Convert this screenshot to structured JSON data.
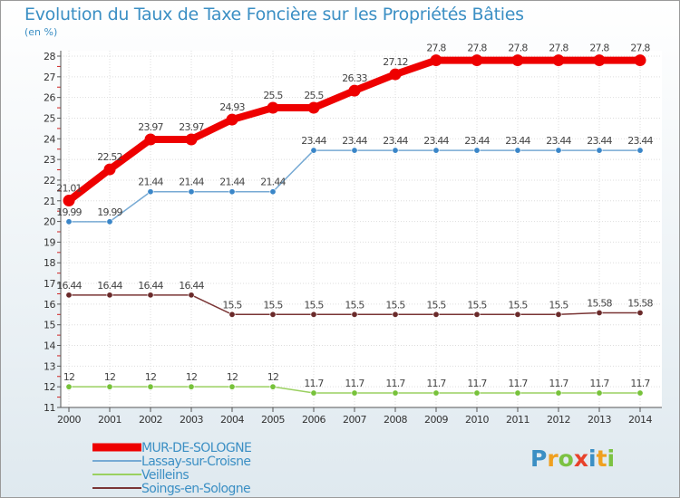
{
  "header": {
    "title": "Evolution du Taux de Taxe Foncière sur les Propriétés Bâties",
    "unit": "(en %)"
  },
  "brand": {
    "name": "Proxiti",
    "letters": [
      "P",
      "r",
      "o",
      "x",
      "i",
      "t",
      "i"
    ],
    "letter_colors": [
      "#3b8fc4",
      "#f0a020",
      "#7cc242",
      "#e8422b",
      "#3b8fc4",
      "#f0a020",
      "#7cc242"
    ]
  },
  "chart_data": {
    "type": "line",
    "title": "Evolution du Taux de Taxe Foncière sur les Propriétés Bâties",
    "ylabel": "(en %)",
    "xlabel": "",
    "x": [
      "2000",
      "2001",
      "2002",
      "2003",
      "2004",
      "2005",
      "2006",
      "2007",
      "2008",
      "2009",
      "2010",
      "2011",
      "2012",
      "2013",
      "2014"
    ],
    "ylim": [
      11,
      28
    ],
    "yticks": [
      11,
      12,
      13,
      14,
      15,
      16,
      17,
      18,
      19,
      20,
      21,
      22,
      23,
      24,
      25,
      26,
      27,
      28
    ],
    "grid": true,
    "legend_position": "bottom-left",
    "series": [
      {
        "name": "MUR-DE-SOLOGNE",
        "color": "#ee0000",
        "emphasis": true,
        "values": [
          21.01,
          22.52,
          23.97,
          23.97,
          24.93,
          25.5,
          25.5,
          26.33,
          27.12,
          27.8,
          27.8,
          27.8,
          27.8,
          27.8,
          27.8
        ],
        "labels": [
          "21.01",
          "22.52",
          "23.97",
          "23.97",
          "24.93",
          "25.5",
          "25.5",
          "26.33",
          "27.12",
          "27.8",
          "27.8",
          "27.8",
          "27.8",
          "27.8",
          "27.8"
        ]
      },
      {
        "name": "Lassay-sur-Croisne",
        "color": "#77aad4",
        "point_color": "#3a86c8",
        "values": [
          19.99,
          19.99,
          21.44,
          21.44,
          21.44,
          21.44,
          23.44,
          23.44,
          23.44,
          23.44,
          23.44,
          23.44,
          23.44,
          23.44,
          23.44
        ],
        "labels": [
          "19.99",
          "19.99",
          "21.44",
          "21.44",
          "21.44",
          "21.44",
          "23.44",
          "23.44",
          "23.44",
          "23.44",
          "23.44",
          "23.44",
          "23.44",
          "23.44",
          "23.44"
        ]
      },
      {
        "name": "Veilleins",
        "color": "#9ad060",
        "point_color": "#77c23a",
        "values": [
          12,
          12,
          12,
          12,
          12,
          12,
          11.7,
          11.7,
          11.7,
          11.7,
          11.7,
          11.7,
          11.7,
          11.7,
          11.7
        ],
        "labels": [
          "12",
          "12",
          "12",
          "12",
          "12",
          "12",
          "11.7",
          "11.7",
          "11.7",
          "11.7",
          "11.7",
          "11.7",
          "11.7",
          "11.7",
          "11.7"
        ]
      },
      {
        "name": "Soings-en-Sologne",
        "color": "#7a3535",
        "point_color": "#6a2a2a",
        "values": [
          16.44,
          16.44,
          16.44,
          16.44,
          15.5,
          15.5,
          15.5,
          15.5,
          15.5,
          15.5,
          15.5,
          15.5,
          15.5,
          15.58,
          15.58
        ],
        "labels": [
          "16.44",
          "16.44",
          "16.44",
          "16.44",
          "15.5",
          "15.5",
          "15.5",
          "15.5",
          "15.5",
          "15.5",
          "15.5",
          "15.5",
          "15.5",
          "15.58",
          "15.58"
        ]
      }
    ]
  }
}
